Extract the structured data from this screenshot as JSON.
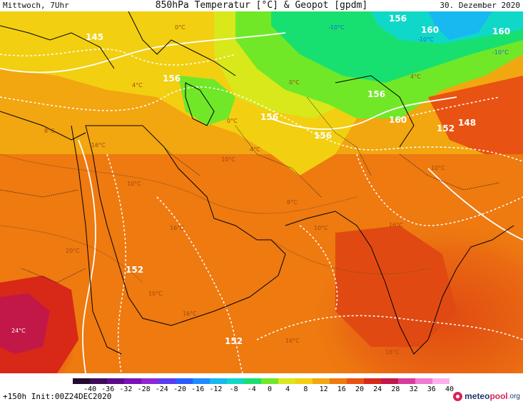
{
  "header": {
    "valid_day": "Mittwoch, 7Uhr",
    "title": "850hPa Temperatur [°C] & Geopot [gpdm]",
    "date": "30. Dezember 2020"
  },
  "map": {
    "geopotential_labels": [
      "145",
      "156",
      "160",
      "160",
      "156",
      "156",
      "156",
      "160",
      "156",
      "152",
      "148",
      "152",
      "152"
    ],
    "temperature_labels": [
      "-10°C",
      "-10°C",
      "-10°C",
      "0°C",
      "4°C",
      "4°C",
      "0°C",
      "0°C",
      "8°C",
      "4°C",
      "10°C",
      "16°C",
      "10°C",
      "8°C",
      "10°C",
      "16°C",
      "10°C",
      "16°C",
      "20°C",
      "10°C",
      "16°C",
      "24°C",
      "16°C",
      "16°C"
    ]
  },
  "legend": {
    "ticks": [
      "-40",
      "-36",
      "-32",
      "-28",
      "-24",
      "-20",
      "-16",
      "-12",
      "-8",
      "-4",
      "0",
      "4",
      "8",
      "12",
      "16",
      "20",
      "24",
      "28",
      "32",
      "36",
      "40"
    ],
    "colors": [
      "#240a2e",
      "#3c0c5a",
      "#5a0c8a",
      "#7a10b8",
      "#8e26d6",
      "#5a3cf0",
      "#2a5cff",
      "#1e8cff",
      "#18b8f0",
      "#10d8c8",
      "#18e070",
      "#70e828",
      "#d8e81a",
      "#f2cf10",
      "#f2a610",
      "#ee7a10",
      "#e85212",
      "#d82818",
      "#c21848",
      "#d83c9a",
      "#f07ad0",
      "#ffb0ec"
    ]
  },
  "footer": {
    "run": "+150h Init:00Z24DEC2020",
    "logo_part1": "meteo",
    "logo_part2": "pool",
    "logo_part3": ".org"
  }
}
